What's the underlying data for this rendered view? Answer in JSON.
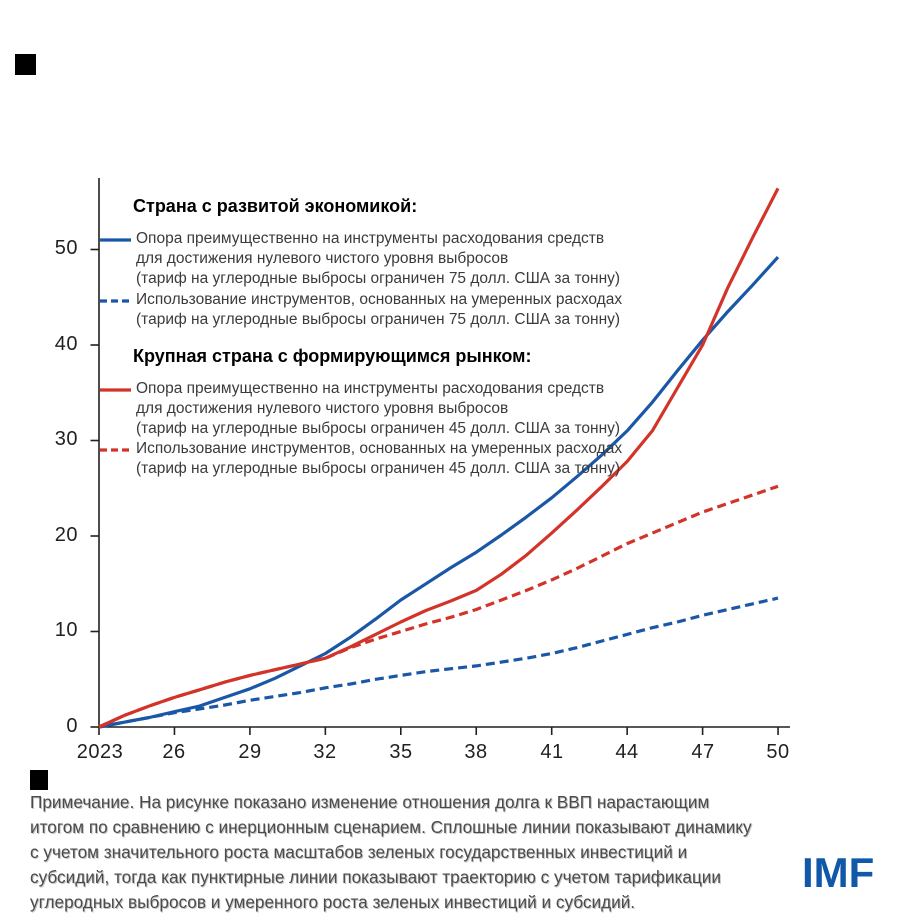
{
  "figure": {
    "background": "#ffffff"
  },
  "colors": {
    "blue": "#1A57A6",
    "red": "#D2342A",
    "axis": "#231F20",
    "legend_text": "#3B3B3D",
    "note_text": "#4B4B4D",
    "imf_blue": "#1158A9",
    "mark_black": "#000000"
  },
  "legend": {
    "group1": {
      "title": "Страна с развитой экономикой:",
      "items": [
        {
          "style": "solid",
          "color_key": "blue",
          "lines": [
            "Опора преимущественно на инструменты расходования средств",
            "для достижения нулевого чистого уровня выбросов",
            "(тариф на углеродные выбросы ограничен 75 долл. США за тонну)"
          ]
        },
        {
          "style": "dashed",
          "color_key": "blue",
          "lines": [
            "Использование инструментов, основанных на умеренных расходах",
            "(тариф на углеродные выбросы ограничен 75 долл. США за тонну)"
          ]
        }
      ]
    },
    "group2": {
      "title": "Крупная страна с формирующимся рынком:",
      "items": [
        {
          "style": "solid",
          "color_key": "red",
          "lines": [
            "Опора преимущественно на инструменты расходования средств",
            "для достижения нулевого чистого уровня выбросов",
            "(тариф на углеродные выбросы ограничен 45 долл. США за тонну)"
          ]
        },
        {
          "style": "dashed",
          "color_key": "red",
          "lines": [
            "Использование инструментов, основанных на умеренных расходах",
            "(тариф на углеродные выбросы ограничен 45 долл. США за тонну)"
          ]
        }
      ]
    }
  },
  "axes": {
    "y_ticks": [
      "0",
      "10",
      "20",
      "30",
      "40",
      "50"
    ],
    "x_ticks": [
      "2023",
      "26",
      "29",
      "32",
      "35",
      "38",
      "41",
      "44",
      "47",
      "50"
    ]
  },
  "note": {
    "lines": [
      "Примечание. На рисунке показано изменение отношения долга к ВВП нарастающим",
      "итогом по сравнению с инерционным сценарием. Сплошные линии показывают динамику",
      "с учетом значительного роста масштабов зеленых государственных инвестиций и",
      "субсидий, тогда как пунктирные линии показывают траекторию с учетом тарификации",
      "углеродных выбросов и умеренного роста зеленых инвестиций и субсидий."
    ]
  },
  "logo": {
    "text": "IMF"
  },
  "chart_data": {
    "type": "line",
    "title": "",
    "xlabel": "",
    "ylabel": "",
    "x": [
      2023,
      2024,
      2025,
      2026,
      2027,
      2028,
      2029,
      2030,
      2031,
      2032,
      2033,
      2034,
      2035,
      2036,
      2037,
      2038,
      2039,
      2040,
      2041,
      2042,
      2043,
      2044,
      2045,
      2046,
      2047,
      2048,
      2049,
      2050
    ],
    "xlim": [
      2023,
      2050
    ],
    "ylim": [
      0,
      57
    ],
    "grid": false,
    "legend_position": "inside-top-left",
    "series": [
      {
        "name": "Страна с развитой экономикой — опора преимущественно на инструменты расходования средств для достижения нулевого чистого уровня выбросов (тариф на углеродные выбросы ограничен 75 долл. США за тонну)",
        "color": "#1A57A6",
        "dash": "solid",
        "values": [
          0,
          0.5,
          1.0,
          1.6,
          2.2,
          3.1,
          4.0,
          5.1,
          6.4,
          7.7,
          9.4,
          11.3,
          13.3,
          15.0,
          16.7,
          18.3,
          20.1,
          22.0,
          24.0,
          26.2,
          28.5,
          31.0,
          34.0,
          37.3,
          40.5,
          43.5,
          46.3,
          49.2
        ]
      },
      {
        "name": "Страна с развитой экономикой — использование инструментов, основанных на умеренных расходах (тариф на углеродные выбросы ограничен 75 долл. США за тонну)",
        "color": "#1A57A6",
        "dash": "dashed",
        "values": [
          0,
          0.5,
          1.0,
          1.5,
          1.9,
          2.3,
          2.8,
          3.2,
          3.6,
          4.1,
          4.5,
          5.0,
          5.4,
          5.8,
          6.1,
          6.4,
          6.8,
          7.2,
          7.7,
          8.3,
          9.0,
          9.7,
          10.4,
          11.0,
          11.7,
          12.3,
          12.9,
          13.5
        ]
      },
      {
        "name": "Крупная страна с формирующимся рынком — опора преимущественно на инструменты расходования средств для достижения нулевого чистого уровня выбросов (тариф на углеродные выбросы ограничен 45 долл. США за тонну)",
        "color": "#D2342A",
        "dash": "solid",
        "values": [
          0,
          1.2,
          2.2,
          3.1,
          3.9,
          4.7,
          5.4,
          6.0,
          6.6,
          7.2,
          8.4,
          9.7,
          11.0,
          12.2,
          13.2,
          14.3,
          16.0,
          18.0,
          20.3,
          22.7,
          25.2,
          27.8,
          31.0,
          35.5,
          40.0,
          46.0,
          51.3,
          56.4
        ]
      },
      {
        "name": "Крупная страна с формирующимся рынком — использование инструментов, основанных на умеренных расходах (тариф на углеродные выбросы ограничен 45 долл. США за тонну)",
        "color": "#D2342A",
        "dash": "dashed",
        "values": [
          0,
          1.2,
          2.2,
          3.1,
          3.9,
          4.7,
          5.4,
          6.0,
          6.6,
          7.2,
          8.3,
          9.2,
          10.0,
          10.8,
          11.5,
          12.3,
          13.3,
          14.3,
          15.4,
          16.6,
          17.9,
          19.2,
          20.3,
          21.4,
          22.5,
          23.4,
          24.3,
          25.2
        ]
      }
    ]
  }
}
